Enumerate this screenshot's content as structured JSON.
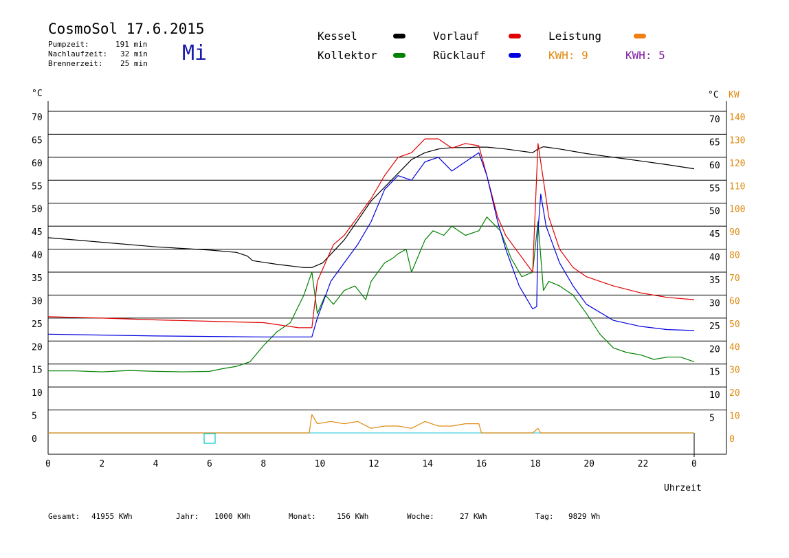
{
  "header": {
    "title": "CosmoSol 17.6.2015",
    "day": "Mi",
    "info": [
      {
        "label": "Pumpzeit:",
        "value": "191 min"
      },
      {
        "label": "Nachlaufzeit:",
        "value": "32 min"
      },
      {
        "label": "Brennerzeit:",
        "value": "25 min"
      }
    ]
  },
  "legend": {
    "kessel": {
      "label": "Kessel",
      "color": "#000000"
    },
    "kollektor": {
      "label": "Kollektor",
      "color": "#008000"
    },
    "vorlauf": {
      "label": "Vorlauf",
      "color": "#e00000"
    },
    "ruecklauf": {
      "label": "Rücklauf",
      "color": "#0000e0"
    },
    "leistung": {
      "label": "Leistung",
      "color": "#f08010"
    },
    "kwh1": {
      "label": "KWH: 9",
      "color": "#e08a10"
    },
    "kwh2": {
      "label": "KWH: 5",
      "color": "#8020a0"
    }
  },
  "footer": {
    "gesamt_label": "Gesamt:",
    "gesamt_value": "41955 KWh",
    "jahr_label": "Jahr:",
    "jahr_value": "1000 KWh",
    "monat_label": "Monat:",
    "monat_value": "156 KWh",
    "woche_label": "Woche:",
    "woche_value": "27 KWh",
    "tag_label": "Tag:",
    "tag_value": "9829 Wh"
  },
  "chart_data": {
    "type": "line",
    "xlabel": "Uhrzeit",
    "ylabel_left": "°C",
    "ylabel_right_1": "°C",
    "ylabel_right_2": "KW",
    "xlim": [
      0,
      24
    ],
    "ylim": [
      0,
      70
    ],
    "ylim_right_kw": [
      0,
      140
    ],
    "x_ticks": [
      "0",
      "2",
      "4",
      "6",
      "8",
      "10",
      "12",
      "14",
      "16",
      "18",
      "20",
      "22",
      "0"
    ],
    "y_ticks_left": [
      "70",
      "65",
      "60",
      "55",
      "50",
      "45",
      "40",
      "35",
      "30",
      "25",
      "20",
      "15",
      "10",
      "5",
      "0"
    ],
    "y_ticks_right": [
      "70",
      "65",
      "60",
      "55",
      "50",
      "45",
      "40",
      "35",
      "30",
      "25",
      "20",
      "15",
      "10",
      "5"
    ],
    "y_ticks_right_kw": [
      "140",
      "130",
      "120",
      "110",
      "100",
      "90",
      "80",
      "70",
      "60",
      "50",
      "40",
      "30",
      "20",
      "10",
      "0"
    ],
    "grid": true,
    "series": [
      {
        "name": "Kessel",
        "color": "#000000",
        "x": [
          0,
          2,
          4,
          6,
          7,
          7.4,
          7.6,
          8.5,
          9.5,
          9.8,
          10.2,
          11,
          12,
          13,
          13.5,
          14,
          14.5,
          15,
          15.5,
          16,
          16.3,
          17,
          18,
          18.2,
          18.4,
          19,
          20,
          21,
          22,
          23,
          24
        ],
        "y": [
          42.5,
          41.5,
          40.5,
          39.8,
          39.3,
          38.5,
          37.5,
          36.7,
          36,
          36,
          37,
          42,
          50.5,
          56.5,
          59.5,
          61,
          61.8,
          62.1,
          62.1,
          62.2,
          62.2,
          61.8,
          61.0,
          61.8,
          62.3,
          61.8,
          60.8,
          60,
          59.2,
          58.4,
          57.5
        ]
      },
      {
        "name": "Kollektor",
        "color": "#008000",
        "x": [
          0,
          1,
          2,
          3,
          4,
          5,
          6,
          6.5,
          7,
          7.5,
          8,
          8.5,
          9,
          9.5,
          9.8,
          10,
          10.3,
          10.6,
          11,
          11.4,
          11.8,
          12,
          12.5,
          12.8,
          13,
          13.3,
          13.5,
          14,
          14.3,
          14.7,
          15,
          15.5,
          16,
          16.3,
          16.8,
          17.2,
          17.6,
          18,
          18.2,
          18.4,
          18.6,
          19,
          19.5,
          20,
          20.5,
          21,
          21.5,
          22,
          22.5,
          23,
          23.5,
          24
        ],
        "y": [
          13.5,
          13.5,
          13.3,
          13.6,
          13.4,
          13.3,
          13.4,
          14,
          14.5,
          15.5,
          19,
          22,
          24,
          30,
          35,
          26,
          30,
          28,
          31,
          32,
          29,
          33,
          37,
          38,
          39,
          40,
          35,
          42,
          44,
          43,
          45,
          43,
          44,
          47,
          44,
          38,
          34,
          35,
          46,
          31,
          33,
          32,
          30,
          26,
          21.5,
          18.5,
          17.5,
          17,
          16,
          16.5,
          16.5,
          15.5
        ]
      },
      {
        "name": "Vorlauf",
        "color": "#e00000",
        "x": [
          0,
          2,
          4,
          6,
          8,
          9.3,
          9.8,
          10,
          10.3,
          10.6,
          11,
          11.5,
          12,
          12.5,
          13,
          13.5,
          14,
          14.5,
          15,
          15.5,
          16,
          16.3,
          16.7,
          17,
          17.5,
          18,
          18.2,
          18.4,
          18.6,
          19,
          19.5,
          20,
          21,
          22,
          23,
          24
        ],
        "y": [
          25.3,
          25,
          24.6,
          24.3,
          24,
          22.9,
          22.9,
          33,
          37,
          41,
          43,
          47,
          51,
          56,
          60,
          61,
          64,
          64,
          62,
          63,
          62.5,
          56,
          47,
          43,
          39,
          35,
          63,
          55,
          47,
          40,
          36,
          34,
          32,
          30.5,
          29.5,
          29
        ]
      },
      {
        "name": "Rücklauf",
        "color": "#0000e0",
        "x": [
          0,
          2,
          4,
          6,
          8,
          9.5,
          9.8,
          10,
          10.5,
          11,
          11.5,
          12,
          12.5,
          13,
          13.5,
          14,
          14.5,
          15,
          15.5,
          16,
          16.3,
          16.7,
          17,
          17.5,
          18,
          18.15,
          18.2,
          18.3,
          18.5,
          19,
          19.5,
          20,
          21,
          22,
          23,
          24
        ],
        "y": [
          21.5,
          21.3,
          21.1,
          21.0,
          20.9,
          20.9,
          20.9,
          25,
          33,
          37,
          41,
          46,
          53,
          56,
          55,
          59,
          60,
          57,
          59,
          61,
          56,
          46,
          40,
          32,
          27,
          27.5,
          44,
          52,
          45,
          37,
          32,
          28,
          24.5,
          23.2,
          22.5,
          22.3
        ]
      },
      {
        "name": "Leistung",
        "color": "#e08a10",
        "axis": "kw",
        "x": [
          0,
          9.7,
          9.8,
          10,
          10.5,
          11,
          11.5,
          12,
          12.5,
          13,
          13.5,
          14,
          14.5,
          15,
          15.5,
          16,
          16.1,
          17,
          18,
          18.2,
          18.3,
          24
        ],
        "y": [
          0,
          0,
          8,
          4,
          5,
          4,
          5,
          2,
          3,
          3,
          2,
          5,
          3,
          3,
          4,
          4,
          0,
          0,
          0,
          2,
          0,
          0
        ]
      }
    ]
  }
}
